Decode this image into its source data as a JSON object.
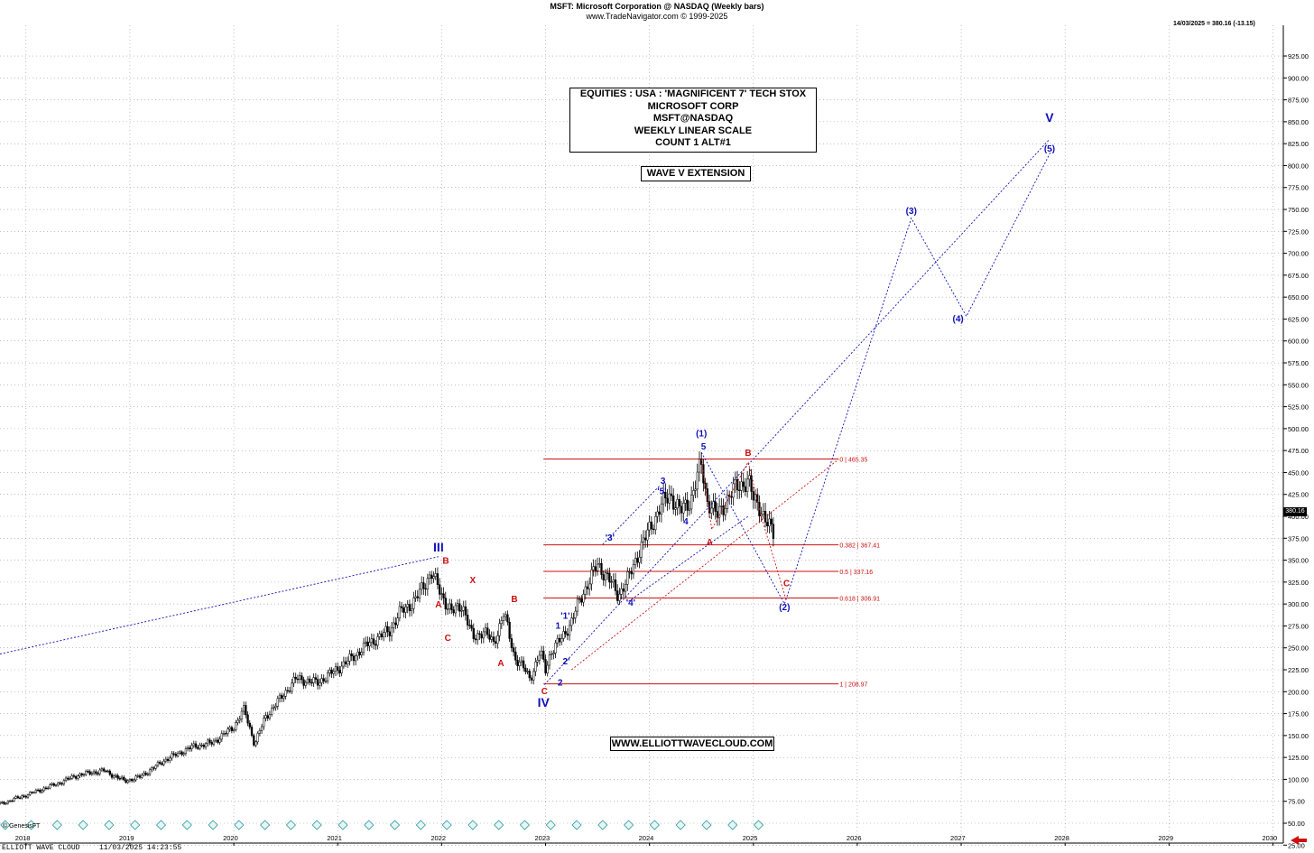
{
  "header": {
    "title": "MSFT:  Microsoft Corporation @ NASDAQ  (Weekly bars)",
    "copyright": "www.TradeNavigator.com © 1999-2025",
    "last_quote": "14/03/2025 = 380.16 (-13.15)",
    "price_flag": "380.16"
  },
  "footer": {
    "left": "ELLIOTT WAVE CLOUD",
    "timestamp": "11/03/2025 14:23:55",
    "genesis": "© GenesisFT"
  },
  "info_box": {
    "lines": [
      "EQUITIES : USA : 'MAGNIFICENT 7' TECH STOX",
      "MICROSOFT CORP",
      "MSFT@NASDAQ",
      "WEEKLY LINEAR SCALE",
      "COUNT 1 ALT#1"
    ]
  },
  "wave_box": "WAVE V EXTENSION",
  "website": "WWW.ELLIOTTWAVECLOUD.COM",
  "colors": {
    "blue": "#1010b8",
    "red": "#cc1010",
    "grid": "#9a9a9a",
    "candle": "#000000"
  },
  "chart_data": {
    "type": "candlestick",
    "y_axis": {
      "min": 25,
      "max": 925,
      "step": 25,
      "side": "right"
    },
    "x_axis": {
      "labels": [
        "2018",
        "2019",
        "2020",
        "2021",
        "2022",
        "2023",
        "2024",
        "2025",
        "2026",
        "2027",
        "2028",
        "2029",
        "2030"
      ],
      "range": [
        2017.75,
        2030.1
      ]
    },
    "price_path": [
      [
        2017.75,
        72
      ],
      [
        2018.0,
        82
      ],
      [
        2018.3,
        95
      ],
      [
        2018.5,
        105
      ],
      [
        2018.75,
        110
      ],
      [
        2018.95,
        98
      ],
      [
        2019.1,
        103
      ],
      [
        2019.35,
        123
      ],
      [
        2019.6,
        137
      ],
      [
        2019.8,
        142
      ],
      [
        2020.0,
        160
      ],
      [
        2020.1,
        180
      ],
      [
        2020.2,
        140
      ],
      [
        2020.3,
        170
      ],
      [
        2020.5,
        200
      ],
      [
        2020.6,
        215
      ],
      [
        2020.8,
        210
      ],
      [
        2020.95,
        222
      ],
      [
        2021.1,
        235
      ],
      [
        2021.3,
        255
      ],
      [
        2021.5,
        270
      ],
      [
        2021.6,
        290
      ],
      [
        2021.75,
        305
      ],
      [
        2021.9,
        336
      ],
      [
        2022.0,
        310
      ],
      [
        2022.1,
        290
      ],
      [
        2022.2,
        300
      ],
      [
        2022.3,
        260
      ],
      [
        2022.4,
        270
      ],
      [
        2022.5,
        255
      ],
      [
        2022.6,
        290
      ],
      [
        2022.7,
        240
      ],
      [
        2022.8,
        225
      ],
      [
        2022.85,
        215
      ],
      [
        2022.95,
        245
      ],
      [
        2023.0,
        225
      ],
      [
        2023.05,
        245
      ],
      [
        2023.15,
        260
      ],
      [
        2023.25,
        280
      ],
      [
        2023.35,
        310
      ],
      [
        2023.5,
        345
      ],
      [
        2023.6,
        330
      ],
      [
        2023.7,
        310
      ],
      [
        2023.8,
        330
      ],
      [
        2023.9,
        360
      ],
      [
        2024.0,
        385
      ],
      [
        2024.1,
        410
      ],
      [
        2024.2,
        425
      ],
      [
        2024.3,
        405
      ],
      [
        2024.4,
        420
      ],
      [
        2024.5,
        460
      ],
      [
        2024.55,
        420
      ],
      [
        2024.65,
        400
      ],
      [
        2024.75,
        420
      ],
      [
        2024.85,
        435
      ],
      [
        2024.95,
        440
      ],
      [
        2025.0,
        420
      ],
      [
        2025.05,
        415
      ],
      [
        2025.12,
        393
      ],
      [
        2025.2,
        380
      ]
    ],
    "fib_levels": [
      {
        "label": "0 | 465.35",
        "value": 465.35
      },
      {
        "label": "0.382 | 367.41",
        "value": 367.41
      },
      {
        "label": "0.5 | 337.16",
        "value": 337.16
      },
      {
        "label": "0.618 | 306.91",
        "value": 306.91
      },
      {
        "label": "1 | 208.97",
        "value": 208.97
      }
    ],
    "wave_labels": [
      {
        "text": "III",
        "x": 2021.97,
        "y": 360,
        "color": "blue",
        "size": "big"
      },
      {
        "text": "IV",
        "x": 2022.98,
        "y": 183,
        "color": "blue",
        "size": "big"
      },
      {
        "text": "V",
        "x": 2027.85,
        "y": 850,
        "color": "blue",
        "size": "big"
      },
      {
        "text": "B",
        "x": 2022.04,
        "y": 346,
        "color": "red"
      },
      {
        "text": "A",
        "x": 2021.97,
        "y": 296,
        "color": "red"
      },
      {
        "text": "C",
        "x": 2022.06,
        "y": 258,
        "color": "red"
      },
      {
        "text": "X",
        "x": 2022.3,
        "y": 324,
        "color": "red"
      },
      {
        "text": "B",
        "x": 2022.7,
        "y": 302,
        "color": "red"
      },
      {
        "text": "A",
        "x": 2022.57,
        "y": 229,
        "color": "red"
      },
      {
        "text": "C",
        "x": 2022.99,
        "y": 197,
        "color": "red"
      },
      {
        "text": "1",
        "x": 2023.12,
        "y": 272,
        "color": "blue"
      },
      {
        "text": "'1'",
        "x": 2023.19,
        "y": 283,
        "color": "blue"
      },
      {
        "text": "2",
        "x": 2023.14,
        "y": 207,
        "color": "blue"
      },
      {
        "text": "2'",
        "x": 2023.2,
        "y": 231,
        "color": "blue"
      },
      {
        "text": "'3'",
        "x": 2023.62,
        "y": 372,
        "color": "blue"
      },
      {
        "text": "'4'",
        "x": 2023.82,
        "y": 298,
        "color": "blue"
      },
      {
        "text": "3",
        "x": 2024.13,
        "y": 437,
        "color": "blue"
      },
      {
        "text": "'5'",
        "x": 2024.12,
        "y": 425,
        "color": "blue"
      },
      {
        "text": "4",
        "x": 2024.35,
        "y": 391,
        "color": "blue"
      },
      {
        "text": "5",
        "x": 2024.52,
        "y": 476,
        "color": "blue"
      },
      {
        "text": "(1)",
        "x": 2024.5,
        "y": 491,
        "color": "blue"
      },
      {
        "text": "A",
        "x": 2024.58,
        "y": 367,
        "color": "red"
      },
      {
        "text": "B",
        "x": 2024.95,
        "y": 469,
        "color": "red"
      },
      {
        "text": "C",
        "x": 2025.32,
        "y": 320,
        "color": "red"
      },
      {
        "text": "(2)",
        "x": 2025.3,
        "y": 293,
        "color": "blue"
      },
      {
        "text": "(3)",
        "x": 2026.52,
        "y": 745,
        "color": "blue"
      },
      {
        "text": "(4)",
        "x": 2026.97,
        "y": 622,
        "color": "blue"
      },
      {
        "text": "(5)",
        "x": 2027.85,
        "y": 816,
        "color": "blue"
      }
    ],
    "projection_lines": [
      {
        "color": "blue",
        "points": [
          [
            2017.75,
            243
          ],
          [
            2021.97,
            354
          ]
        ]
      },
      {
        "color": "blue",
        "points": [
          [
            2024.5,
            473
          ],
          [
            2025.3,
            300
          ],
          [
            2026.52,
            740
          ],
          [
            2027.05,
            628
          ],
          [
            2027.88,
            820
          ]
        ]
      },
      {
        "color": "blue",
        "points": [
          [
            2022.99,
            208
          ],
          [
            2027.85,
            830
          ]
        ]
      },
      {
        "color": "blue",
        "points": [
          [
            2023.55,
            368
          ],
          [
            2024.1,
            435
          ]
        ]
      },
      {
        "color": "blue",
        "points": [
          [
            2023.8,
            303
          ],
          [
            2024.95,
            400
          ]
        ]
      },
      {
        "color": "red",
        "points": [
          [
            2023.25,
            225
          ],
          [
            2025.82,
            465
          ]
        ]
      },
      {
        "color": "red",
        "points": [
          [
            2024.5,
            465
          ],
          [
            2024.6,
            385
          ],
          [
            2024.95,
            462
          ],
          [
            2025.08,
            398
          ],
          [
            2025.32,
            303
          ]
        ]
      }
    ]
  }
}
